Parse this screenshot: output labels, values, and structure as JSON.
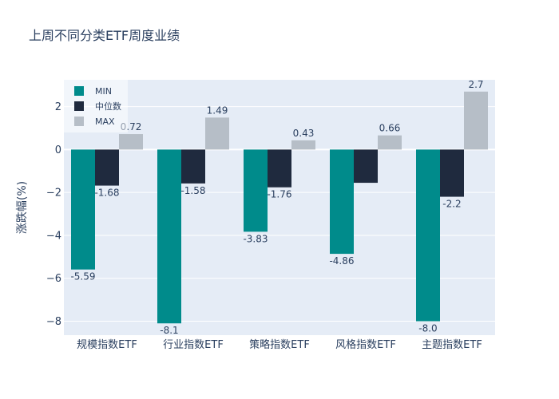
{
  "chart_data": {
    "type": "bar",
    "title": "上周不同分类ETF周度业绩",
    "xlabel": "",
    "ylabel": "涨跌幅(%)",
    "categories": [
      "规模指数ETF",
      "行业指数ETF",
      "策略指数ETF",
      "风格指数ETF",
      "主题指数ETF"
    ],
    "series": [
      {
        "name": "MIN",
        "color": "#008b8b",
        "values": [
          -5.59,
          -8.1,
          -3.83,
          -4.86,
          -8.0
        ],
        "labels": [
          "-5.59",
          "-8.1",
          "-3.83",
          "-4.86",
          "-8.0"
        ]
      },
      {
        "name": "中位数",
        "color": "#1f2a3e",
        "values": [
          -1.68,
          -1.58,
          -1.76,
          -1.55,
          -2.2
        ],
        "labels": [
          "-1.68",
          "-1.58",
          "-1.76",
          "",
          "-2.2"
        ]
      },
      {
        "name": "MAX",
        "color": "#b6bec7",
        "values": [
          0.72,
          1.49,
          0.43,
          0.66,
          2.7
        ],
        "labels": [
          "0.72",
          "1.49",
          "0.43",
          "0.66",
          "2.7"
        ]
      }
    ],
    "ylim": [
      -8.65,
      3.25
    ],
    "yticks": [
      -8,
      -6,
      -4,
      -2,
      0,
      2
    ],
    "ytick_labels": [
      "−8",
      "−6",
      "−4",
      "−2",
      "0",
      "2"
    ],
    "grid": true,
    "legend_position": "top-left"
  }
}
